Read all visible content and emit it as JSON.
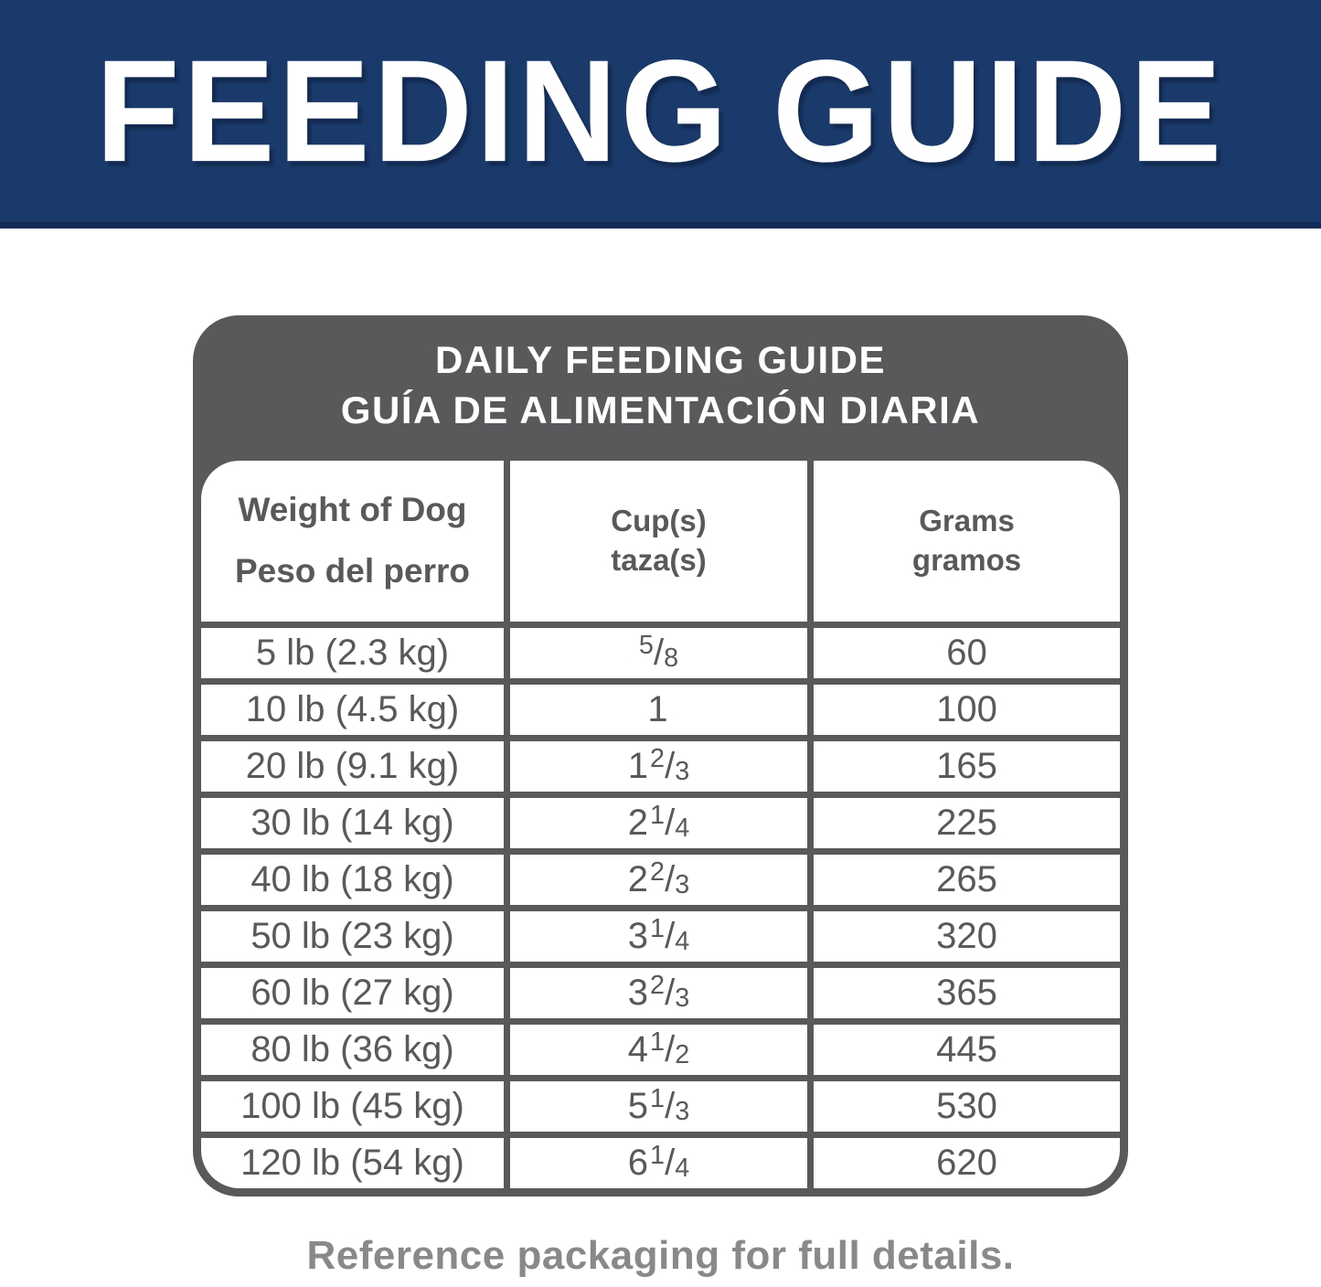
{
  "banner": {
    "title": "FEEDING GUIDE"
  },
  "guide": {
    "title_en": "DAILY FEEDING GUIDE",
    "title_es": "GUÍA DE ALIMENTACIÓN DIARIA",
    "columns": {
      "weight_en": "Weight of Dog",
      "weight_es": "Peso del perro",
      "cups_en": "Cup(s)",
      "cups_es": "taza(s)",
      "grams_en": "Grams",
      "grams_es": "gramos"
    },
    "rows": [
      {
        "weight": "5 lb (2.3 kg)",
        "cups": {
          "whole": "",
          "num": "5",
          "den": "8"
        },
        "grams": "60"
      },
      {
        "weight": "10 lb (4.5 kg)",
        "cups": {
          "whole": "1",
          "num": "",
          "den": ""
        },
        "grams": "100"
      },
      {
        "weight": "20 lb (9.1 kg)",
        "cups": {
          "whole": "1",
          "num": "2",
          "den": "3"
        },
        "grams": "165"
      },
      {
        "weight": "30 lb (14 kg)",
        "cups": {
          "whole": "2",
          "num": "1",
          "den": "4"
        },
        "grams": "225"
      },
      {
        "weight": "40 lb (18 kg)",
        "cups": {
          "whole": "2",
          "num": "2",
          "den": "3"
        },
        "grams": "265"
      },
      {
        "weight": "50 lb (23 kg)",
        "cups": {
          "whole": "3",
          "num": "1",
          "den": "4"
        },
        "grams": "320"
      },
      {
        "weight": "60 lb (27 kg)",
        "cups": {
          "whole": "3",
          "num": "2",
          "den": "3"
        },
        "grams": "365"
      },
      {
        "weight": "80 lb (36 kg)",
        "cups": {
          "whole": "4",
          "num": "1",
          "den": "2"
        },
        "grams": "445"
      },
      {
        "weight": "100 lb (45 kg)",
        "cups": {
          "whole": "5",
          "num": "1",
          "den": "3"
        },
        "grams": "530"
      },
      {
        "weight": "120 lb (54 kg)",
        "cups": {
          "whole": "6",
          "num": "1",
          "den": "4"
        },
        "grams": "620"
      }
    ]
  },
  "footer": {
    "note": "Reference packaging for full details."
  },
  "colors": {
    "banner_bg": "#1a3a6b",
    "panel_gray": "#58595b",
    "cell_text": "#58595b",
    "footer_text": "#87898b"
  }
}
